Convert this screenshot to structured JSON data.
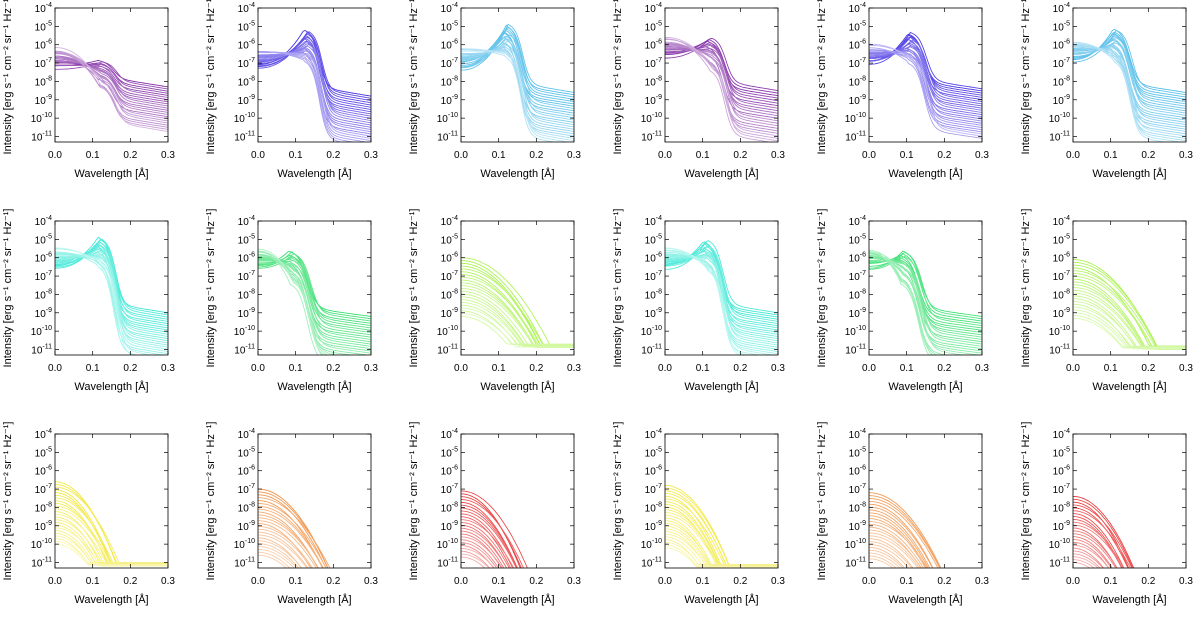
{
  "chart_data": {
    "type": "line",
    "layout": "3x6 grid of log-scale line panels",
    "xlabel": "Wavelength [Å]",
    "ylabel": "Intensity [erg s⁻¹ cm⁻² sr⁻¹ Hz⁻¹]",
    "xlim": [
      0.0,
      0.3
    ],
    "ylim_log10": [
      -11.3,
      -4
    ],
    "x_ticks": [
      "0.0",
      "0.1",
      "0.2",
      "0.3"
    ],
    "y_ticks": [
      {
        "base": "10",
        "exp": "-4"
      },
      {
        "base": "10",
        "exp": "-5"
      },
      {
        "base": "10",
        "exp": "-6"
      },
      {
        "base": "10",
        "exp": "-7"
      },
      {
        "base": "10",
        "exp": "-8"
      },
      {
        "base": "10",
        "exp": "-9"
      },
      {
        "base": "10",
        "exp": "-10"
      },
      {
        "base": "10",
        "exp": "-11"
      }
    ],
    "panels": [
      {
        "color": "#7a1fa0",
        "kind": "peak",
        "top": -6.85,
        "core": -6.7,
        "spread": 2.7,
        "wing_top": -7.7,
        "peak_x": 0.12,
        "n": 22
      },
      {
        "color": "#3c28e0",
        "kind": "peak",
        "top": -5.15,
        "core": -6.7,
        "spread": 3.1,
        "wing_top": -8.2,
        "peak_x": 0.13,
        "n": 24
      },
      {
        "color": "#3cb4e6",
        "kind": "peak",
        "top": -4.85,
        "core": -6.7,
        "spread": 3.2,
        "wing_top": -8.0,
        "peak_x": 0.12,
        "n": 24
      },
      {
        "color": "#7a1fa0",
        "kind": "peak",
        "top": -5.6,
        "core": -6.1,
        "spread": 3.2,
        "wing_top": -7.9,
        "peak_x": 0.12,
        "n": 22
      },
      {
        "color": "#3c28e0",
        "kind": "peak",
        "top": -5.3,
        "core": -6.5,
        "spread": 3.0,
        "wing_top": -7.8,
        "peak_x": 0.11,
        "n": 24
      },
      {
        "color": "#3cb4e6",
        "kind": "peak",
        "top": -5.1,
        "core": -6.3,
        "spread": 3.2,
        "wing_top": -8.0,
        "peak_x": 0.11,
        "n": 24
      },
      {
        "color": "#2ee6d2",
        "kind": "peak",
        "top": -4.85,
        "core": -6.0,
        "spread": 3.0,
        "wing_top": -8.4,
        "peak_x": 0.12,
        "n": 24
      },
      {
        "color": "#28dc64",
        "kind": "peak",
        "top": -5.6,
        "core": -6.0,
        "spread": 3.2,
        "wing_top": -8.6,
        "peak_x": 0.09,
        "n": 24
      },
      {
        "color": "#a0f03c",
        "kind": "smooth",
        "top": -6.0,
        "spread": 3.2,
        "tail_x": 0.2,
        "tail_drop": 3.7,
        "floor": -10.7,
        "n": 22
      },
      {
        "color": "#2ee6d2",
        "kind": "peak",
        "top": -5.0,
        "core": -6.0,
        "spread": 3.0,
        "wing_top": -8.4,
        "peak_x": 0.11,
        "n": 24
      },
      {
        "color": "#28dc64",
        "kind": "peak",
        "top": -5.6,
        "core": -6.0,
        "spread": 3.2,
        "wing_top": -8.6,
        "peak_x": 0.09,
        "n": 24
      },
      {
        "color": "#a0f03c",
        "kind": "smooth",
        "top": -6.1,
        "spread": 3.2,
        "tail_x": 0.2,
        "tail_drop": 3.8,
        "floor": -10.8,
        "n": 22
      },
      {
        "color": "#f0e628",
        "kind": "smooth",
        "top": -6.6,
        "spread": 3.4,
        "tail_x": 0.17,
        "tail_drop": 4.6,
        "floor": -11.0,
        "n": 24
      },
      {
        "color": "#f08c3c",
        "kind": "smooth",
        "top": -7.0,
        "spread": 3.6,
        "tail_x": 0.2,
        "tail_drop": 4.6,
        "floor": -11.4,
        "n": 24
      },
      {
        "color": "#e62828",
        "kind": "smooth",
        "top": -7.1,
        "spread": 3.6,
        "tail_x": 0.18,
        "tail_drop": 4.8,
        "floor": -11.4,
        "n": 24
      },
      {
        "color": "#f0e628",
        "kind": "smooth",
        "top": -6.8,
        "spread": 3.4,
        "tail_x": 0.17,
        "tail_drop": 4.6,
        "floor": -11.1,
        "n": 24
      },
      {
        "color": "#f08c3c",
        "kind": "smooth",
        "top": -7.2,
        "spread": 3.6,
        "tail_x": 0.2,
        "tail_drop": 4.6,
        "floor": -11.4,
        "n": 24
      },
      {
        "color": "#e62828",
        "kind": "smooth",
        "top": -7.4,
        "spread": 3.6,
        "tail_x": 0.18,
        "tail_drop": 4.8,
        "floor": -11.4,
        "n": 24
      }
    ]
  }
}
